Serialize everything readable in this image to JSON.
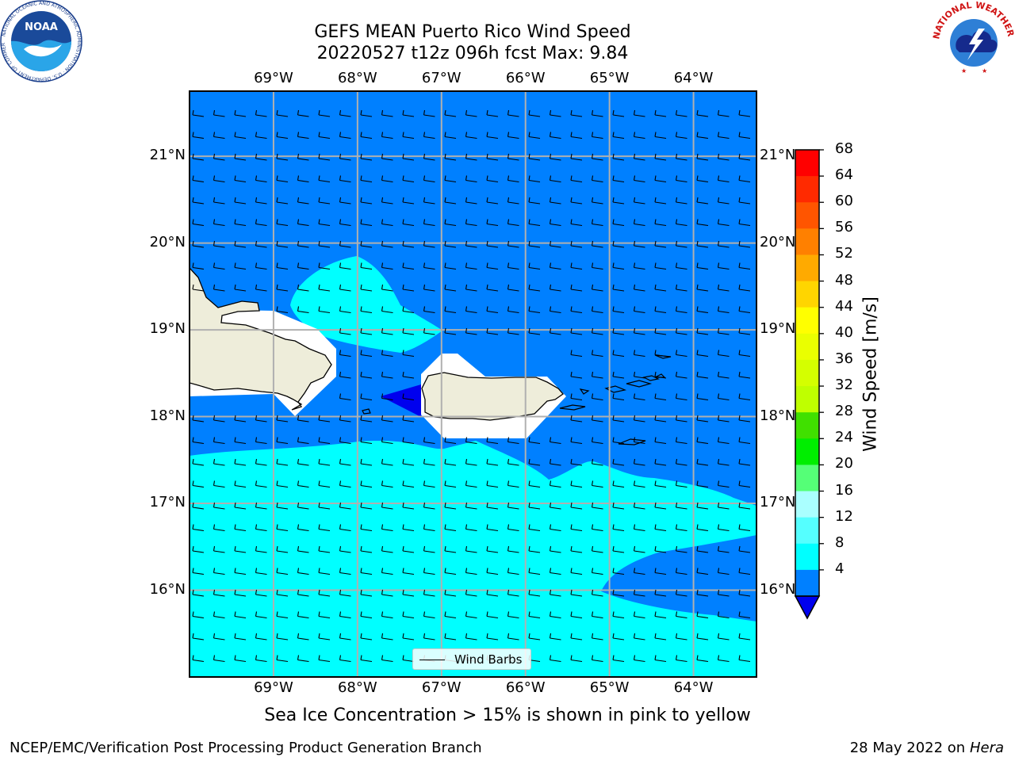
{
  "title": {
    "line1": "GEFS MEAN Puerto Rico Wind Speed",
    "line2": "20220527 t12z 096h fcst   Max: 9.84"
  },
  "logos": {
    "left": "NOAA",
    "left_ring_text": "NATIONAL OCEANIC AND ATMOSPHERIC ADMINISTRATION · U.S. DEPARTMENT OF COMMERCE",
    "right_ring_text": "NATIONAL WEATHER SERVICE"
  },
  "axes": {
    "lon_ticks": [
      "69°W",
      "68°W",
      "67°W",
      "66°W",
      "65°W",
      "64°W"
    ],
    "lat_ticks": [
      "21°N",
      "20°N",
      "19°N",
      "18°N",
      "17°N",
      "16°N"
    ],
    "lon_range": [
      -70.0,
      -63.25
    ],
    "lat_range": [
      15.0,
      21.75
    ]
  },
  "colorbar": {
    "label": "Wind Speed [m/s]",
    "ticks": [
      "68",
      "64",
      "60",
      "56",
      "52",
      "48",
      "44",
      "40",
      "36",
      "32",
      "28",
      "24",
      "20",
      "16",
      "12",
      "8",
      "4"
    ],
    "colors": [
      "#ff0000",
      "#ff2a00",
      "#ff5500",
      "#ff8000",
      "#ffaa00",
      "#ffd500",
      "#ffff00",
      "#eaff00",
      "#d4ff00",
      "#bfff00",
      "#40e000",
      "#00ee00",
      "#55ff77",
      "#aaffff",
      "#55ffff",
      "#00ffff",
      "#0080ff"
    ],
    "extend_below_color": "#0000ee",
    "extend": "min"
  },
  "colors": {
    "band_4_8": "#0080ff",
    "band_8_12": "#00ffff",
    "band_below_4": "#0000ee",
    "land": "#eeedda",
    "grid": "#b0b0b0"
  },
  "legend": {
    "label": "Wind Barbs"
  },
  "footnote": "Sea Ice Concentration > 15% is shown in pink to yellow",
  "footer": {
    "left": "NCEP/EMC/Verification Post Processing Product Generation Branch",
    "right_date": "28 May 2022 on",
    "right_system": "Hera"
  }
}
